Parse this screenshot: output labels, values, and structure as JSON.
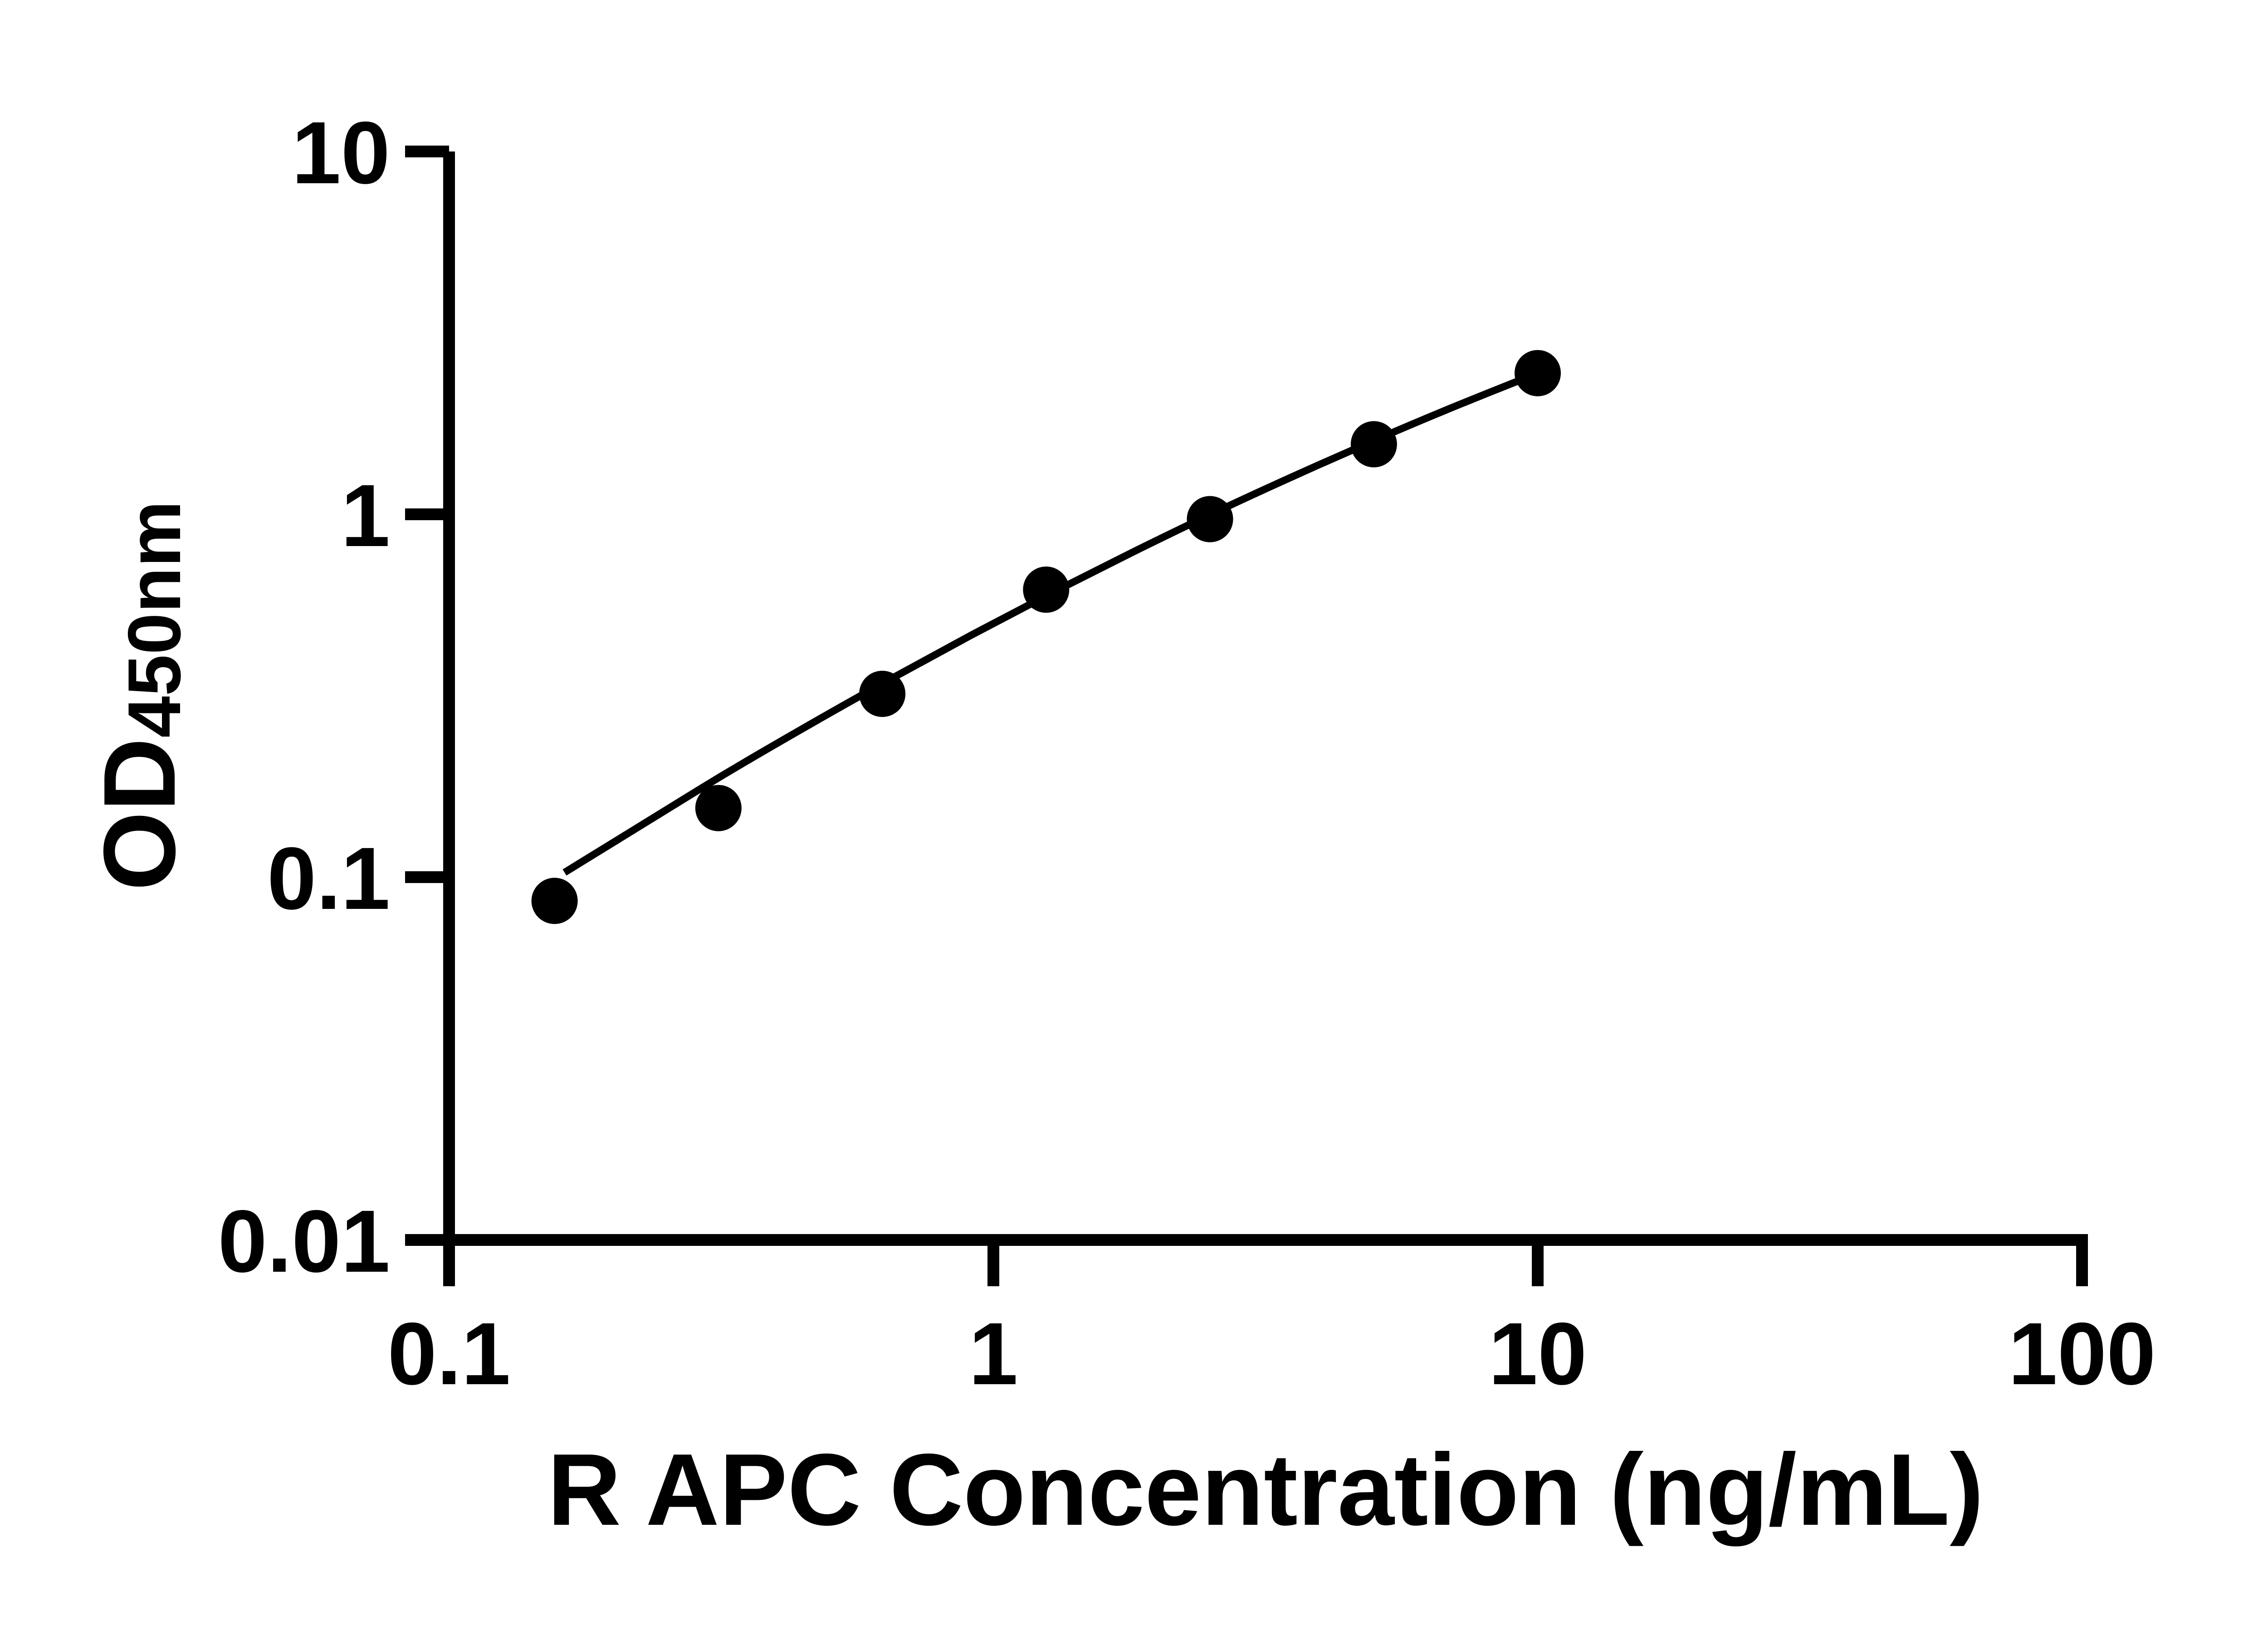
{
  "chart_data": {
    "type": "scatter",
    "title": "",
    "xlabel": "R APC Concentration (ng/mL)",
    "ylabel_main": "OD",
    "ylabel_sub": "450nm",
    "x_scale": "log",
    "y_scale": "log",
    "xlim": [
      0.1,
      100
    ],
    "ylim": [
      0.01,
      10
    ],
    "x_ticks": [
      0.1,
      1,
      10,
      100
    ],
    "x_tick_labels": [
      "0.1",
      "1",
      "10",
      "100"
    ],
    "y_ticks": [
      10,
      1,
      0.1,
      0.01
    ],
    "y_tick_labels": [
      "10",
      "1",
      "0.1",
      "0.01"
    ],
    "grid": false,
    "legend_position": "none",
    "colors": {
      "foreground": "#000000",
      "background": "#ffffff"
    },
    "series": [
      {
        "name": "standard-points",
        "marker": "filled-circle",
        "color": "#000000",
        "x": [
          0.15625,
          0.3125,
          0.625,
          1.25,
          2.5,
          5,
          10
        ],
        "y": [
          0.086,
          0.155,
          0.32,
          0.62,
          0.97,
          1.56,
          2.45
        ]
      }
    ],
    "fit_curve": {
      "name": "fitted-standard-curve",
      "color": "#000000",
      "x": [
        0.163,
        0.229,
        0.324,
        0.457,
        0.646,
        0.912,
        1.288,
        1.82,
        2.57,
        3.631,
        5.129,
        7.161,
        10
      ],
      "y": [
        0.103,
        0.141,
        0.194,
        0.262,
        0.351,
        0.465,
        0.61,
        0.792,
        1.017,
        1.291,
        1.623,
        2.004,
        2.449
      ]
    }
  }
}
